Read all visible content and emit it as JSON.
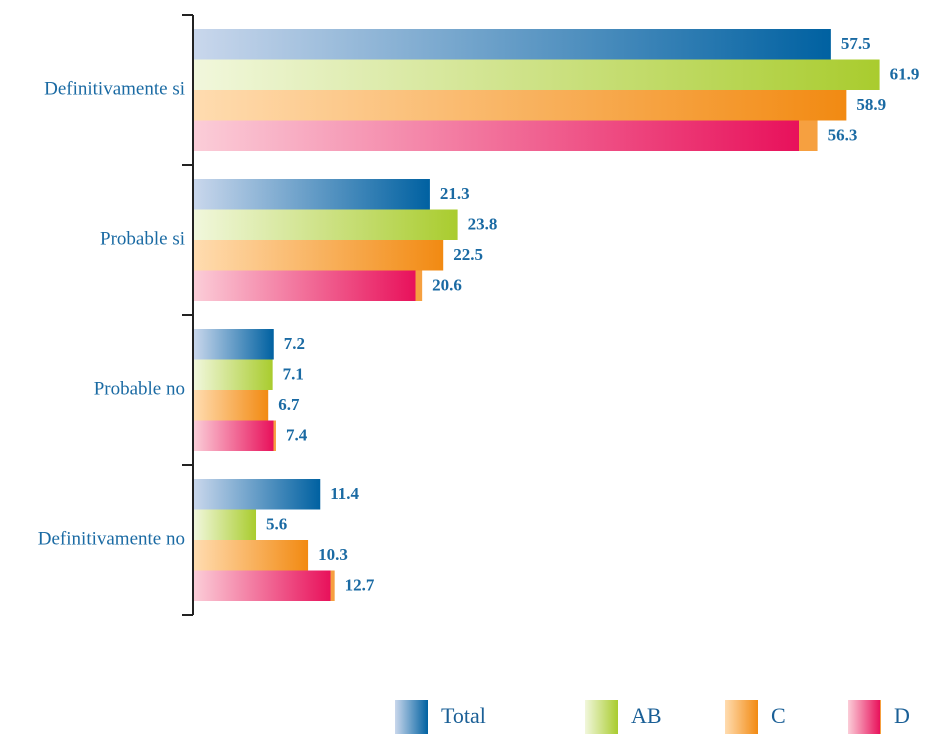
{
  "chart_data": {
    "type": "bar",
    "orientation": "horizontal",
    "categories": [
      "Definitivamente si",
      "Probable si",
      "Probable no",
      "Definitivamente no"
    ],
    "series": [
      {
        "name": "Total",
        "color": "#0061a1",
        "values": [
          57.5,
          21.3,
          7.2,
          11.4
        ]
      },
      {
        "name": "AB",
        "color": "#a9cc2e",
        "values": [
          61.9,
          23.8,
          7.1,
          5.6
        ]
      },
      {
        "name": "C",
        "color": "#f28a12",
        "values": [
          58.9,
          22.5,
          6.7,
          10.3
        ]
      },
      {
        "name": "D",
        "color": "#e8115b",
        "values": [
          56.3,
          20.6,
          7.4,
          12.7
        ]
      }
    ],
    "xlim": [
      0,
      66
    ]
  }
}
